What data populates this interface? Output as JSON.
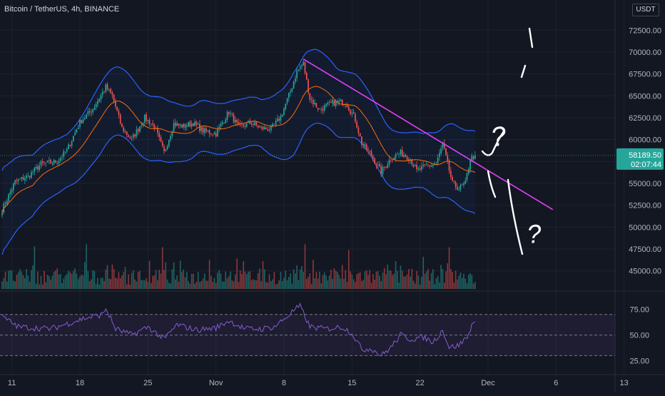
{
  "header": {
    "title": "Bitcoin / TetherUS, 4h, BINANCE",
    "currency": "USDT"
  },
  "price_label": {
    "price": "58189.50",
    "countdown": "02:07:44"
  },
  "chart_data": {
    "type": "line",
    "price_axis": {
      "ticks": [
        "72500.00",
        "70000.00",
        "67500.00",
        "65000.00",
        "62500.00",
        "60000.00",
        "57500.00",
        "55000.00",
        "52500.00",
        "50000.00",
        "47500.00",
        "45000.00"
      ],
      "ylim": [
        44000,
        73500
      ]
    },
    "rsi_axis": {
      "ticks": [
        "75.00",
        "50.00",
        "25.00"
      ],
      "ylim": [
        15,
        90
      ],
      "band": [
        30,
        70
      ]
    },
    "time_axis": {
      "ticks": [
        "11",
        "18",
        "25",
        "Nov",
        "8",
        "15",
        "22",
        "Dec",
        "6",
        "13"
      ],
      "tick_index": [
        6,
        48,
        90,
        132,
        174,
        216,
        258,
        300,
        342,
        384
      ]
    },
    "bars": 293,
    "close_anchors": [
      [
        0,
        52000
      ],
      [
        8,
        55200
      ],
      [
        16,
        55800
      ],
      [
        24,
        57200
      ],
      [
        34,
        57500
      ],
      [
        40,
        58800
      ],
      [
        48,
        62000
      ],
      [
        56,
        63500
      ],
      [
        64,
        66000
      ],
      [
        68,
        65000
      ],
      [
        74,
        61300
      ],
      [
        80,
        60000
      ],
      [
        88,
        62500
      ],
      [
        94,
        61500
      ],
      [
        100,
        58500
      ],
      [
        106,
        61800
      ],
      [
        112,
        61500
      ],
      [
        118,
        61900
      ],
      [
        124,
        61000
      ],
      [
        132,
        60700
      ],
      [
        140,
        63200
      ],
      [
        146,
        61400
      ],
      [
        154,
        61900
      ],
      [
        160,
        61300
      ],
      [
        166,
        61200
      ],
      [
        172,
        62600
      ],
      [
        178,
        65500
      ],
      [
        182,
        67800
      ],
      [
        186,
        68700
      ],
      [
        190,
        64700
      ],
      [
        196,
        63400
      ],
      [
        204,
        64200
      ],
      [
        212,
        64300
      ],
      [
        218,
        62300
      ],
      [
        222,
        59600
      ],
      [
        228,
        58200
      ],
      [
        234,
        56300
      ],
      [
        240,
        57900
      ],
      [
        246,
        58500
      ],
      [
        252,
        57800
      ],
      [
        256,
        56400
      ],
      [
        262,
        57000
      ],
      [
        268,
        57200
      ],
      [
        272,
        59500
      ],
      [
        278,
        55000
      ],
      [
        282,
        54400
      ],
      [
        286,
        55000
      ],
      [
        289,
        57800
      ],
      [
        292,
        58189.5
      ]
    ],
    "bollinger_halfwidth_anchors": [
      [
        0,
        4800
      ],
      [
        20,
        3400
      ],
      [
        40,
        3000
      ],
      [
        60,
        4000
      ],
      [
        80,
        3800
      ],
      [
        100,
        3600
      ],
      [
        120,
        2900
      ],
      [
        140,
        2900
      ],
      [
        160,
        2700
      ],
      [
        180,
        4700
      ],
      [
        200,
        4000
      ],
      [
        220,
        3600
      ],
      [
        240,
        3300
      ],
      [
        260,
        3100
      ],
      [
        278,
        4400
      ],
      [
        292,
        4700
      ]
    ],
    "ma_period": 20,
    "rsi_anchors": [
      [
        0,
        68
      ],
      [
        6,
        62
      ],
      [
        10,
        58
      ],
      [
        20,
        57
      ],
      [
        30,
        56
      ],
      [
        40,
        61
      ],
      [
        50,
        66
      ],
      [
        62,
        70
      ],
      [
        64,
        76
      ],
      [
        70,
        56
      ],
      [
        80,
        50
      ],
      [
        90,
        58
      ],
      [
        100,
        46
      ],
      [
        108,
        60
      ],
      [
        120,
        55
      ],
      [
        132,
        57
      ],
      [
        140,
        64
      ],
      [
        150,
        56
      ],
      [
        160,
        56
      ],
      [
        168,
        58
      ],
      [
        176,
        68
      ],
      [
        180,
        74
      ],
      [
        184,
        78
      ],
      [
        190,
        58
      ],
      [
        200,
        56
      ],
      [
        210,
        58
      ],
      [
        216,
        52
      ],
      [
        222,
        36
      ],
      [
        228,
        37
      ],
      [
        234,
        30
      ],
      [
        240,
        38
      ],
      [
        246,
        50
      ],
      [
        252,
        46
      ],
      [
        260,
        48
      ],
      [
        266,
        43
      ],
      [
        272,
        55
      ],
      [
        276,
        38
      ],
      [
        282,
        40
      ],
      [
        288,
        50
      ],
      [
        290,
        62
      ],
      [
        292,
        61
      ]
    ],
    "volume_spike_bars": [
      20,
      52,
      99,
      128,
      145,
      187,
      192,
      214,
      260,
      276
    ],
    "trend_line": {
      "start": [
        186,
        69200
      ],
      "end": [
        340,
        52000
      ]
    },
    "colors": {
      "up": "#26a69a",
      "down": "#ef5350",
      "band": "#2962ff",
      "ma": "#ff6d00",
      "rsi": "#7e57c2",
      "trend": "#e040fb",
      "price_label_bg": "#26a69a",
      "background": "#131722"
    }
  },
  "annotations": {
    "handwriting_marks": [
      "?",
      "?"
    ]
  }
}
